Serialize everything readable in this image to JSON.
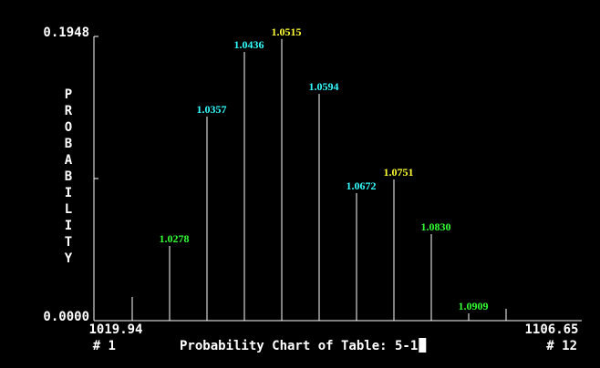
{
  "chart_data": {
    "type": "stem",
    "title": "Probability Chart of Table: 5-1",
    "y_label": "PROBABILITY",
    "categories": [
      null,
      null,
      "1.0278",
      "1.0357",
      "1.0436",
      "1.0515",
      "1.0594",
      "1.0672",
      "1.0751",
      "1.0830",
      "1.0909",
      null
    ],
    "label_colors": [
      null,
      null,
      "#33ff33",
      "#33ffff",
      "#33ffff",
      "#ffff33",
      "#33ffff",
      "#33ffff",
      "#ffff33",
      "#33ff33",
      "#33ff33",
      null
    ],
    "values": [
      0,
      0.0162,
      0.0512,
      0.1399,
      0.1842,
      0.193,
      0.1555,
      0.0874,
      0.0968,
      0.0593,
      0.005,
      0.0081
    ],
    "color": "#ffffff",
    "ylim": [
      0,
      0.1948
    ],
    "yticks": [
      {
        "value": 0,
        "label": "0.0000"
      },
      {
        "value": 0.0974,
        "label": null
      },
      {
        "value": 0.1948,
        "label": "0.1948"
      }
    ],
    "x_axis": {
      "min_label": "1019.94",
      "max_label": "1106.65",
      "first_index": "# 1",
      "last_index": "# 12"
    }
  }
}
